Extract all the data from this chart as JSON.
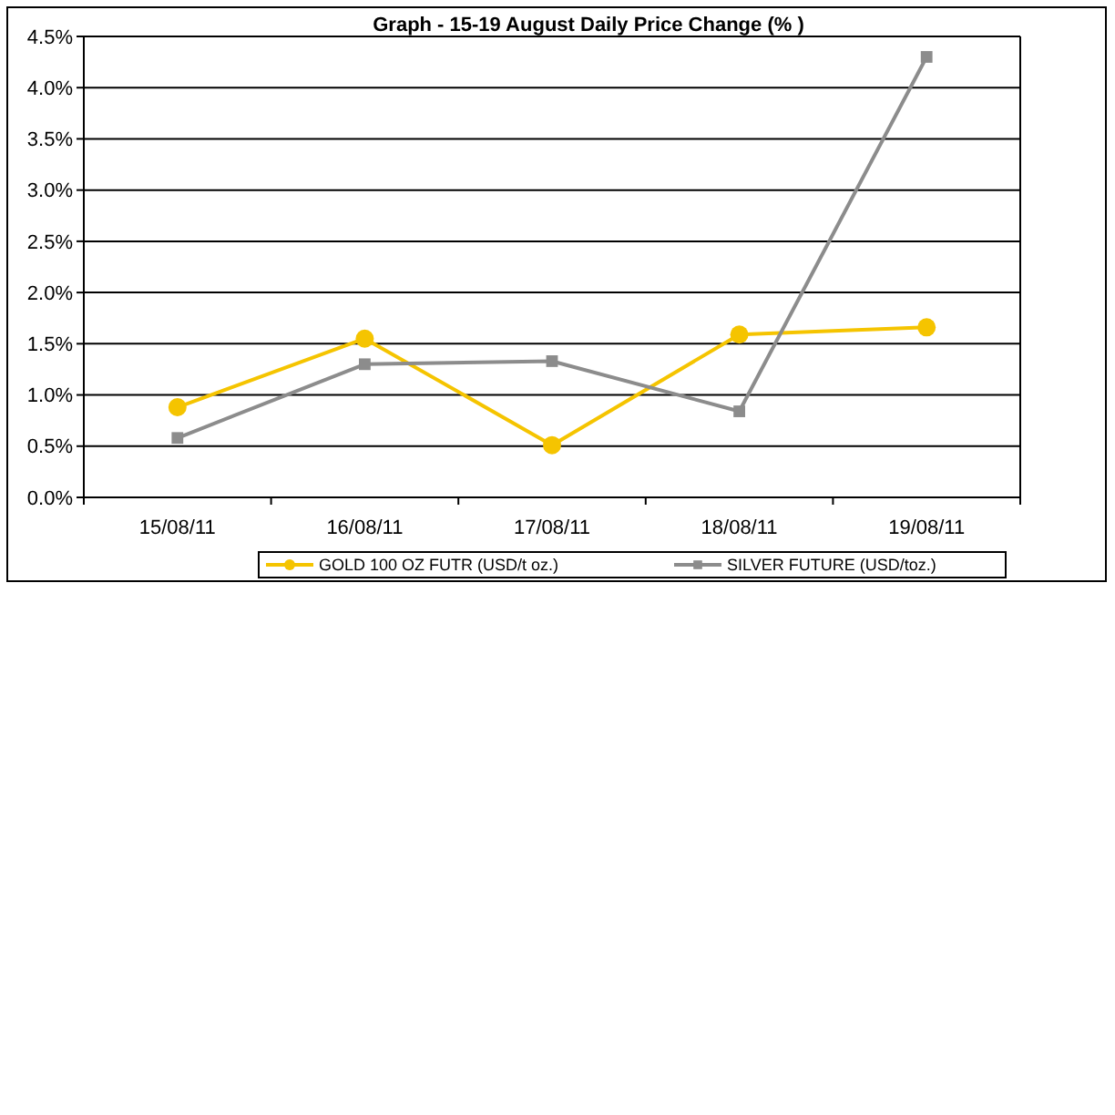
{
  "chart_data": {
    "type": "line",
    "title": "Graph -   15-19 August Daily Price Change (% )",
    "categories": [
      "15/08/11",
      "16/08/11",
      "17/08/11",
      "18/08/11",
      "19/08/11"
    ],
    "series": [
      {
        "name": "GOLD 100 OZ FUTR (USD/t oz.)",
        "color": "#f5c400",
        "marker": "circle",
        "values": [
          0.88,
          1.55,
          0.51,
          1.59,
          1.66
        ]
      },
      {
        "name": "SILVER FUTURE (USD/toz.)",
        "color": "#8c8c8c",
        "marker": "square",
        "values": [
          0.58,
          1.3,
          1.33,
          0.84,
          4.3
        ]
      }
    ],
    "ylim": [
      0,
      4.5
    ],
    "yticks": [
      {
        "value": 0,
        "label": "0.0%"
      },
      {
        "value": 0.5,
        "label": "0.5%"
      },
      {
        "value": 1,
        "label": "1.0%"
      },
      {
        "value": 1.5,
        "label": "1.5%"
      },
      {
        "value": 2,
        "label": "2.0%"
      },
      {
        "value": 2.5,
        "label": "2.5%"
      },
      {
        "value": 3,
        "label": "3.0%"
      },
      {
        "value": 3.5,
        "label": "3.5%"
      },
      {
        "value": 4,
        "label": "4.0%"
      },
      {
        "value": 4.5,
        "label": "4.5%"
      }
    ],
    "grid": "y",
    "legend": "bottom"
  }
}
